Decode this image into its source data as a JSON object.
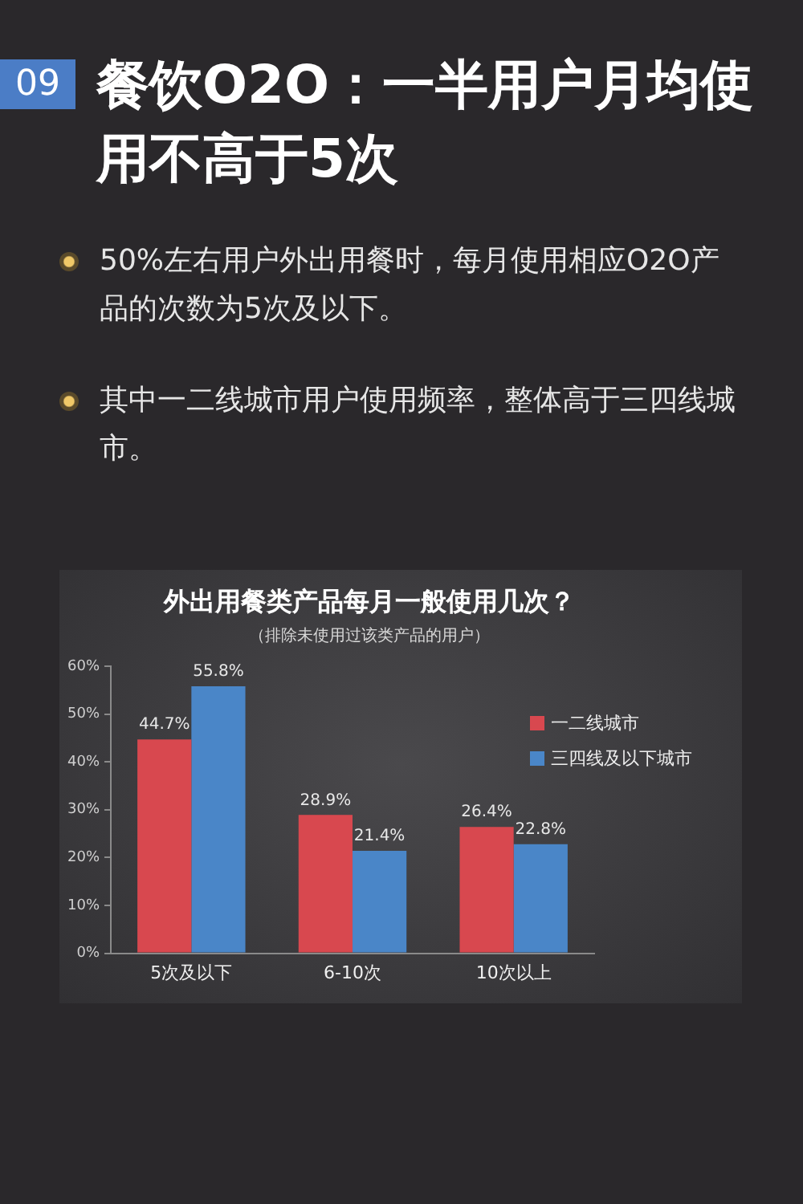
{
  "chart_data": {
    "type": "bar",
    "title": "外出用餐类产品每月一般使用几次？",
    "subtitle": "（排除未使用过该类产品的用户）",
    "annotations": [
      "09",
      "餐饮O2O：一半用户月均使用不高于5次",
      "50%左右用户外出用餐时，每月使用相应O2O产品的次数为5次及以下。",
      "其中一二线城市用户使用频率，整体高于三四线城市。"
    ],
    "categories": [
      "5次及以下",
      "6-10次",
      "10次以上"
    ],
    "series": [
      {
        "name": "一二线城市",
        "color": "#d8484f",
        "values": [
          44.7,
          28.9,
          26.4
        ],
        "value_labels": [
          "44.7%",
          "28.9%",
          "26.4%"
        ]
      },
      {
        "name": "三四线及以下城市",
        "color": "#4a86c8",
        "values": [
          55.8,
          21.4,
          22.8
        ],
        "value_labels": [
          "55.8%",
          "21.4%",
          "22.8%"
        ]
      }
    ],
    "ylim": [
      0,
      60
    ],
    "yticks": [
      {
        "value": 0,
        "label": "0%"
      },
      {
        "value": 10,
        "label": "10%"
      },
      {
        "value": 20,
        "label": "20%"
      },
      {
        "value": 30,
        "label": "30%"
      },
      {
        "value": 40,
        "label": "40%"
      },
      {
        "value": 50,
        "label": "50%"
      },
      {
        "value": 60,
        "label": "60%"
      }
    ],
    "grid": false,
    "legend": "top right"
  }
}
